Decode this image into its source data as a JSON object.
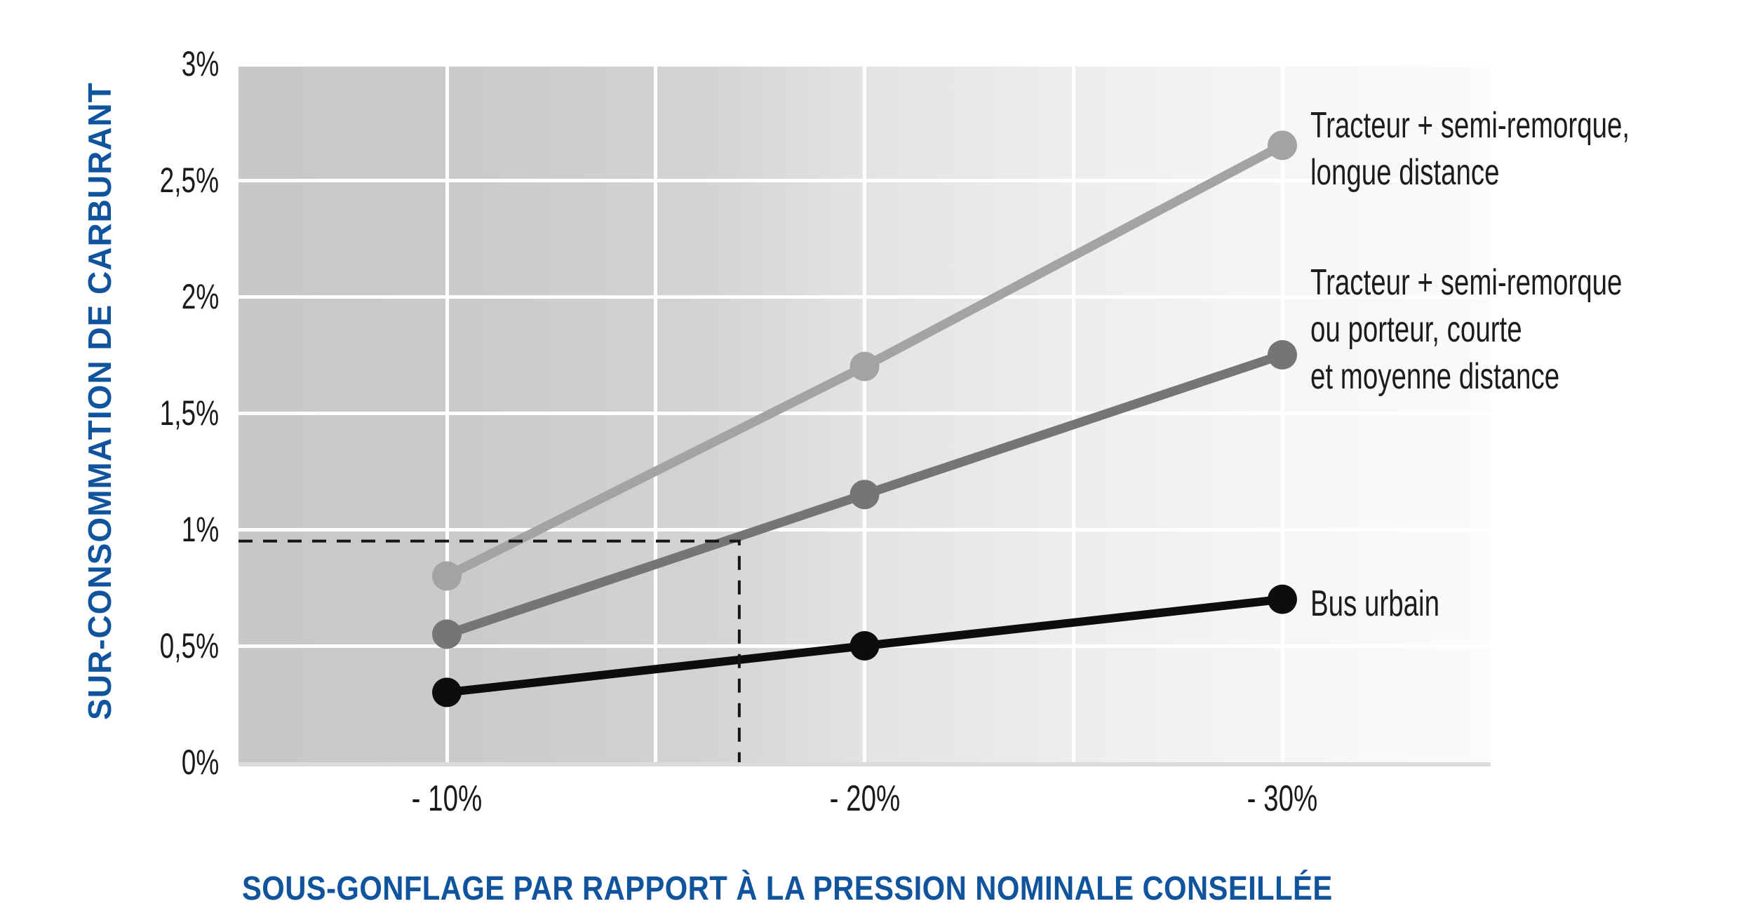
{
  "chart_data": {
    "type": "line",
    "title": "",
    "xlabel": "SOUS-GONFLAGE PAR RAPPORT À LA PRESSION NOMINALE CONSEILLÉE",
    "ylabel": "SUR-CONSOMMATION DE CARBURANT",
    "x_tick_labels": [
      "- 10%",
      "- 20%",
      "- 30%"
    ],
    "x_values": [
      -10,
      -20,
      -30
    ],
    "y_tick_labels": [
      "0%",
      "0,5%",
      "1%",
      "1,5%",
      "2%",
      "2,5%",
      "3%"
    ],
    "y_tick_values": [
      0,
      0.5,
      1,
      1.5,
      2,
      2.5,
      3
    ],
    "ylim": [
      0,
      3
    ],
    "grid": true,
    "legend_position": "right-of-line-ends",
    "series": [
      {
        "name": "Tracteur + semi-remorque, longue distance",
        "legend_lines": [
          "Tracteur + semi-remorque,",
          "longue distance"
        ],
        "color": "#a3a3a3",
        "values": [
          0.8,
          1.7,
          2.65
        ]
      },
      {
        "name": "Tracteur + semi-remorque ou porteur, courte et moyenne distance",
        "legend_lines": [
          "Tracteur + semi-remorque",
          "ou porteur, courte",
          "et moyenne distance"
        ],
        "color": "#757575",
        "values": [
          0.55,
          1.15,
          1.75
        ]
      },
      {
        "name": "Bus urbain",
        "legend_lines": [
          "Bus urbain"
        ],
        "color": "#0d0d0d",
        "values": [
          0.3,
          0.5,
          0.7
        ]
      }
    ],
    "annotation": {
      "type": "dashed-guide",
      "x": -17,
      "y": 0.95,
      "color": "#151515"
    },
    "colors": {
      "axis_title_blue": "#11549E",
      "grid": "#ffffff",
      "plot_bg_left": "#c9c9c9",
      "plot_bg_right": "#fbfbfb"
    }
  }
}
